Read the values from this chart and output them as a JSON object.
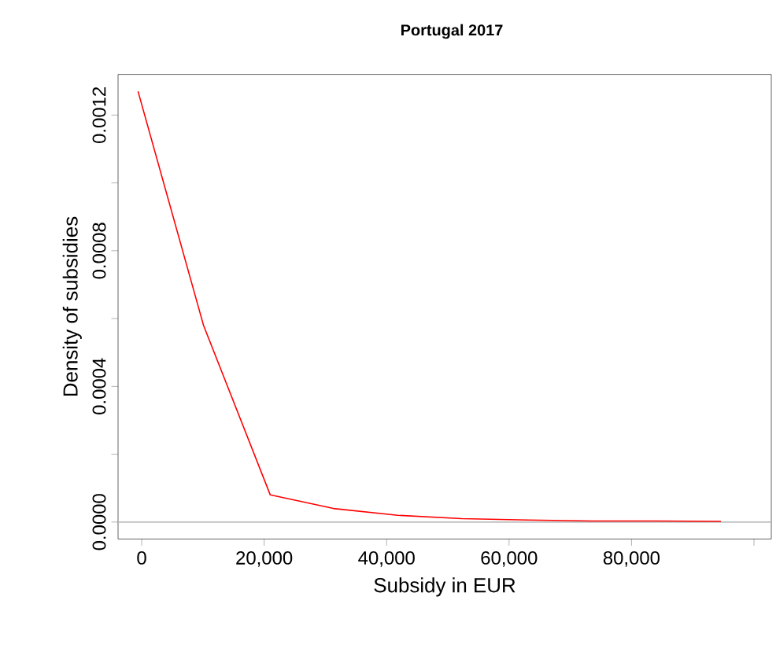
{
  "chart_data": {
    "type": "line",
    "title": "Portugal 2017",
    "xlabel": "Subsidy in EUR",
    "ylabel": "Density of subsidies",
    "x": [
      -600,
      10100,
      21000,
      31300,
      41800,
      52300,
      63000,
      73500,
      84000,
      94600
    ],
    "series": [
      {
        "color": "#ff0000",
        "values": [
          0.00127,
          0.00058,
          8e-05,
          4e-05,
          2e-05,
          1e-05,
          6e-06,
          3e-06,
          3e-06,
          2e-06
        ]
      }
    ],
    "xlim": [
      -3860,
      102830
    ],
    "ylim": [
      -5e-05,
      0.00132
    ],
    "xticks": [
      {
        "value": 0,
        "label": "0"
      },
      {
        "value": 20000,
        "label": "20,000"
      },
      {
        "value": 40000,
        "label": "40,000"
      },
      {
        "value": 60000,
        "label": "60,000"
      },
      {
        "value": 80000,
        "label": "80,000"
      },
      {
        "value": 100000,
        "label": null
      }
    ],
    "yticks": [
      {
        "value": 0,
        "label": "0.0000"
      },
      {
        "value": 0.0002,
        "label": null
      },
      {
        "value": 0.0004,
        "label": "0.0004"
      },
      {
        "value": 0.0006,
        "label": null
      },
      {
        "value": 0.0008,
        "label": "0.0008"
      },
      {
        "value": 0.001,
        "label": null
      },
      {
        "value": 0.0012,
        "label": "0.0012"
      }
    ],
    "ref_lines": [
      {
        "axis": "y",
        "value": 0,
        "color": "#bebebe"
      }
    ],
    "grid": false,
    "marker": "none",
    "line_style": "solid"
  }
}
